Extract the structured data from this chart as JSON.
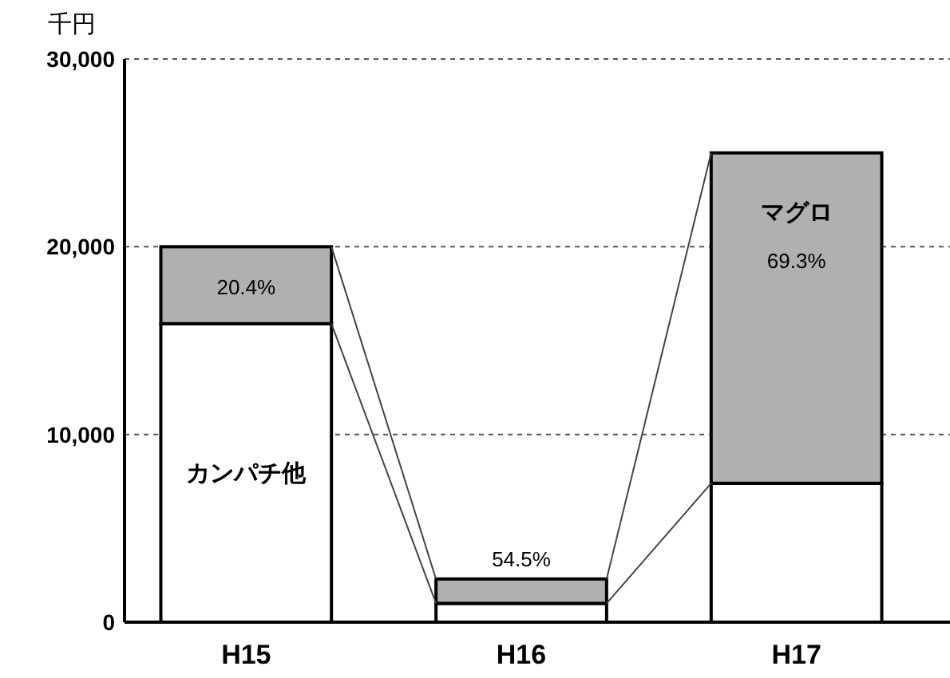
{
  "chart_data": {
    "type": "bar",
    "stacked": true,
    "ylabel": "千円",
    "categories": [
      "H15",
      "H16",
      "H17"
    ],
    "series": [
      {
        "name": "カンパチ他",
        "color": "#ffffff",
        "values": [
          15900,
          1000,
          7400
        ]
      },
      {
        "name": "マグロ",
        "color": "#b0b0b0",
        "values": [
          4100,
          1300,
          17600
        ]
      }
    ],
    "annotations": [
      "20.4%",
      "54.5%",
      "69.3%"
    ],
    "ylim": [
      0,
      30000
    ],
    "yticks": [
      {
        "value": 0,
        "label": "0"
      },
      {
        "value": 10000,
        "label": "10,000"
      },
      {
        "value": 20000,
        "label": "20,000"
      },
      {
        "value": 30000,
        "label": "30,000"
      }
    ],
    "grid": "y",
    "line_style": "dotted"
  }
}
